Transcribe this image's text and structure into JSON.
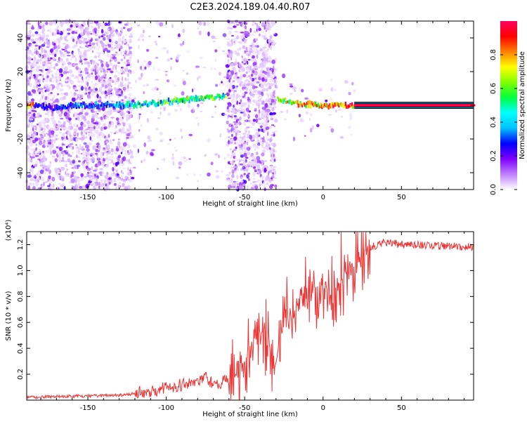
{
  "title": "C2E3.2024.189.04.40.R07",
  "chart_data": [
    {
      "type": "heatmap",
      "name": "spectrogram",
      "xlabel": "Height of straight line (km)",
      "ylabel": "Frequency (Hz)",
      "xlim": [
        -189,
        96
      ],
      "ylim": [
        -50,
        50
      ],
      "xticks": [
        -150,
        -100,
        -50,
        0,
        50
      ],
      "yticks": [
        -40,
        -20,
        0,
        20,
        40
      ],
      "colorbar": {
        "label": "Normalized spectral amplitude",
        "range": [
          0,
          1
        ],
        "ticks": [
          0.0,
          0.2,
          0.4,
          0.6,
          0.8
        ],
        "tick_labels": [
          "0.0",
          "0.2",
          "0.4",
          "0.6",
          "0.8"
        ],
        "colormap": [
          "#ffffff",
          "#d9b3ff",
          "#8000ff",
          "#0000ff",
          "#00ffff",
          "#00ff00",
          "#ffff00",
          "#ff8000",
          "#ff0000",
          "#ff0080"
        ]
      },
      "regions": [
        {
          "kind": "noise",
          "x": [
            -189,
            -122
          ],
          "y": [
            -50,
            50
          ],
          "density": 0.7
        },
        {
          "kind": "noise",
          "x": [
            -122,
            -62
          ],
          "y": [
            -45,
            50
          ],
          "density": 0.08
        },
        {
          "kind": "noise",
          "x": [
            -61,
            -30
          ],
          "y": [
            -50,
            50
          ],
          "density": 0.8
        },
        {
          "kind": "noise",
          "x": [
            -30,
            20
          ],
          "y": [
            -20,
            20
          ],
          "density": 0.06
        }
      ],
      "tone": {
        "points": [
          {
            "x": -185,
            "y": 0,
            "amp": 0.35
          },
          {
            "x": -170,
            "y": -2,
            "amp": 0.35
          },
          {
            "x": -160,
            "y": 0,
            "amp": 0.4
          },
          {
            "x": -140,
            "y": 0,
            "amp": 0.4
          },
          {
            "x": -120,
            "y": 0.5,
            "amp": 0.5
          },
          {
            "x": -100,
            "y": 2,
            "amp": 0.6
          },
          {
            "x": -80,
            "y": 4,
            "amp": 0.6
          },
          {
            "x": -65,
            "y": 5,
            "amp": 0.6
          },
          {
            "x": -28,
            "y": 4,
            "amp": 0.7
          },
          {
            "x": -20,
            "y": 1,
            "amp": 0.85
          },
          {
            "x": 0,
            "y": 0,
            "amp": 0.9
          },
          {
            "x": 20,
            "y": 0,
            "amp": 0.95
          },
          {
            "x": 96,
            "y": 0,
            "amp": 0.95
          }
        ]
      }
    },
    {
      "type": "line",
      "name": "snr",
      "xlabel": "Height of straight line (km)",
      "ylabel": "SNR (10 * v/v)",
      "scale_label": "(x10⁴)",
      "xlim": [
        -189,
        96
      ],
      "ylim": [
        0,
        1.3
      ],
      "xticks": [
        -150,
        -100,
        -50,
        0,
        50
      ],
      "yticks": [
        0.2,
        0.4,
        0.6,
        0.8,
        1.0,
        1.2
      ],
      "color": "#ee3333",
      "series": [
        {
          "x": [
            -189,
            -170,
            -150,
            -130,
            -120,
            -110,
            -100,
            -90,
            -80,
            -75,
            -70,
            -65,
            -60,
            -55,
            -50,
            -45,
            -40,
            -35,
            -30,
            -25,
            -20,
            -15,
            -10,
            -5,
            0,
            5,
            10,
            15,
            20,
            25,
            30,
            35,
            40,
            50,
            60,
            70,
            80,
            96
          ],
          "values": [
            0.02,
            0.03,
            0.03,
            0.04,
            0.05,
            0.07,
            0.1,
            0.12,
            0.14,
            0.18,
            0.12,
            0.14,
            0.15,
            0.2,
            0.3,
            0.45,
            0.55,
            0.4,
            0.3,
            0.6,
            0.62,
            0.8,
            0.75,
            0.85,
            0.88,
            0.8,
            0.9,
            1.0,
            1.05,
            1.1,
            1.18,
            1.2,
            1.22,
            1.2,
            1.2,
            1.19,
            1.19,
            1.18
          ]
        }
      ]
    }
  ]
}
